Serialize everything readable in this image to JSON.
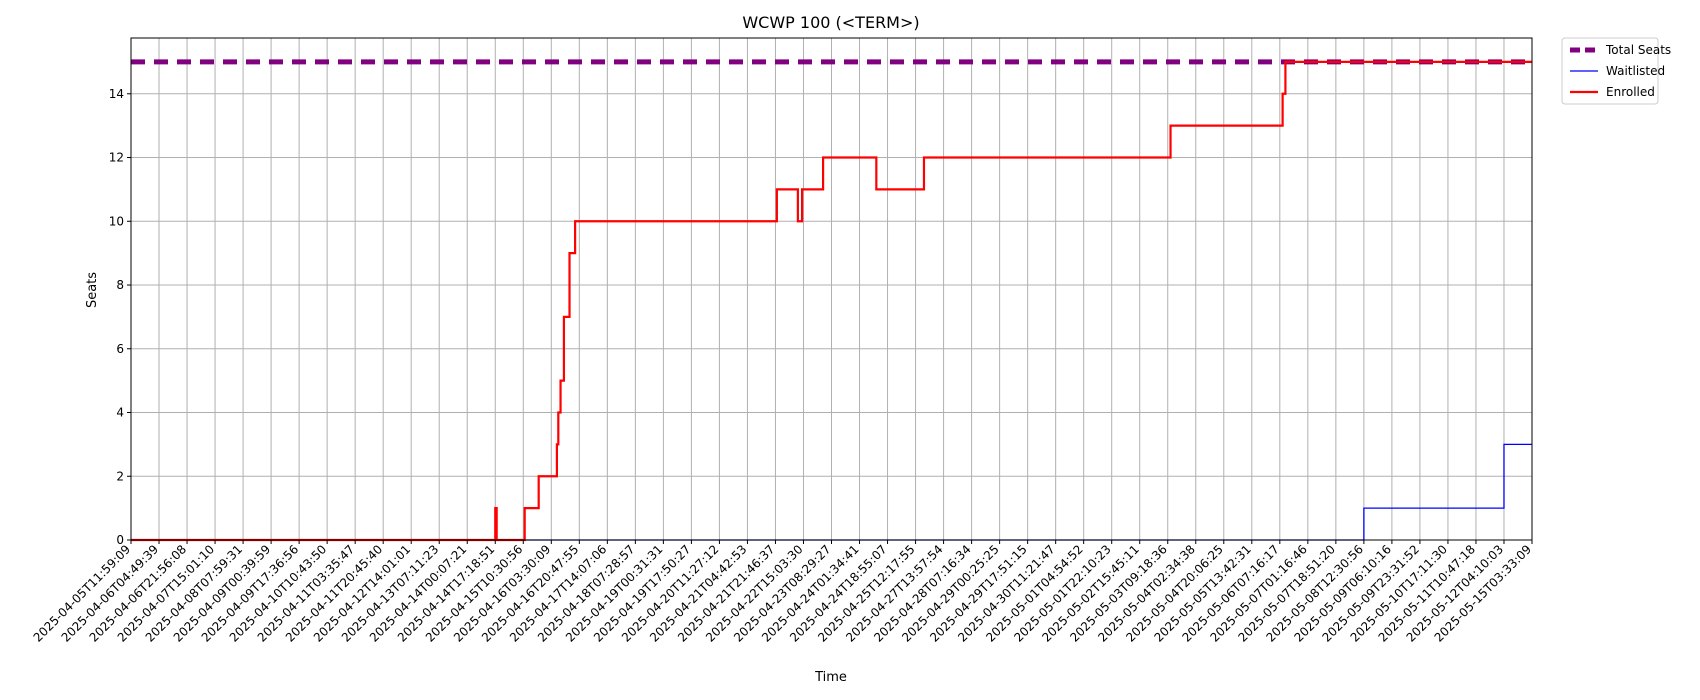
{
  "chart_data": {
    "type": "line",
    "title": "WCWP 100 (<TERM>)",
    "xlabel": "Time",
    "ylabel": "Seats",
    "ylim": [
      0,
      15.75
    ],
    "yticks": [
      0,
      2,
      4,
      6,
      8,
      10,
      12,
      14
    ],
    "grid": true,
    "legend_position": "outside-top-right",
    "x_tick_labels": [
      "2025-04-05T11:59:09",
      "2025-04-06T04:49:39",
      "2025-04-06T21:56:08",
      "2025-04-07T15:01:10",
      "2025-04-08T07:59:31",
      "2025-04-09T00:39:59",
      "2025-04-09T17:36:56",
      "2025-04-10T10:43:50",
      "2025-04-11T03:35:47",
      "2025-04-11T20:45:40",
      "2025-04-12T14:01:01",
      "2025-04-13T07:11:23",
      "2025-04-14T00:07:21",
      "2025-04-14T17:18:51",
      "2025-04-15T10:30:56",
      "2025-04-16T03:30:09",
      "2025-04-16T20:47:55",
      "2025-04-17T14:07:06",
      "2025-04-18T07:28:57",
      "2025-04-19T00:31:31",
      "2025-04-19T17:50:27",
      "2025-04-20T11:27:12",
      "2025-04-21T04:42:53",
      "2025-04-21T21:46:37",
      "2025-04-22T15:03:30",
      "2025-04-23T08:29:27",
      "2025-04-24T01:34:41",
      "2025-04-24T18:55:07",
      "2025-04-25T12:17:55",
      "2025-04-27T13:57:54",
      "2025-04-28T07:16:34",
      "2025-04-29T00:25:25",
      "2025-04-29T17:51:15",
      "2025-04-30T11:21:47",
      "2025-05-01T04:54:52",
      "2025-05-01T22:10:23",
      "2025-05-02T15:45:11",
      "2025-05-03T09:18:36",
      "2025-05-04T02:34:38",
      "2025-05-04T20:06:25",
      "2025-05-05T13:42:31",
      "2025-05-06T07:16:17",
      "2025-05-07T01:16:46",
      "2025-05-07T18:51:20",
      "2025-05-08T12:30:56",
      "2025-05-09T06:10:16",
      "2025-05-09T23:31:52",
      "2025-05-10T17:11:30",
      "2025-05-11T10:47:18",
      "2025-05-12T04:10:03",
      "2025-05-15T03:33:09"
    ],
    "series": [
      {
        "name": "Total Seats",
        "color": "#800080",
        "style": "dashed",
        "points": [
          [
            0,
            15
          ],
          [
            50,
            15
          ]
        ]
      },
      {
        "name": "Waitlisted",
        "color": "#0000ff",
        "style": "step",
        "points": [
          [
            0,
            0
          ],
          [
            44,
            0
          ],
          [
            44,
            1
          ],
          [
            49,
            1
          ],
          [
            49,
            3
          ],
          [
            50,
            3
          ]
        ]
      },
      {
        "name": "Enrolled",
        "color": "#ff0000",
        "style": "step",
        "points": [
          [
            0,
            0
          ],
          [
            13,
            0
          ],
          [
            13,
            1
          ],
          [
            13.05,
            1
          ],
          [
            13.05,
            0
          ],
          [
            14.05,
            0
          ],
          [
            14.05,
            1
          ],
          [
            14.55,
            1
          ],
          [
            14.55,
            2
          ],
          [
            15.2,
            2
          ],
          [
            15.2,
            3
          ],
          [
            15.25,
            3
          ],
          [
            15.25,
            4
          ],
          [
            15.33,
            4
          ],
          [
            15.33,
            5
          ],
          [
            15.45,
            5
          ],
          [
            15.45,
            7
          ],
          [
            15.65,
            7
          ],
          [
            15.65,
            9
          ],
          [
            15.85,
            9
          ],
          [
            15.85,
            10
          ],
          [
            23.05,
            10
          ],
          [
            23.05,
            11
          ],
          [
            23.8,
            11
          ],
          [
            23.8,
            10
          ],
          [
            23.95,
            10
          ],
          [
            23.95,
            11
          ],
          [
            24.7,
            11
          ],
          [
            24.7,
            12
          ],
          [
            26.6,
            12
          ],
          [
            26.6,
            11
          ],
          [
            28.3,
            11
          ],
          [
            28.3,
            12
          ],
          [
            37.1,
            12
          ],
          [
            37.1,
            13
          ],
          [
            41.1,
            13
          ],
          [
            41.1,
            14
          ],
          [
            41.2,
            14
          ],
          [
            41.2,
            15
          ],
          [
            50,
            15
          ]
        ]
      }
    ]
  }
}
